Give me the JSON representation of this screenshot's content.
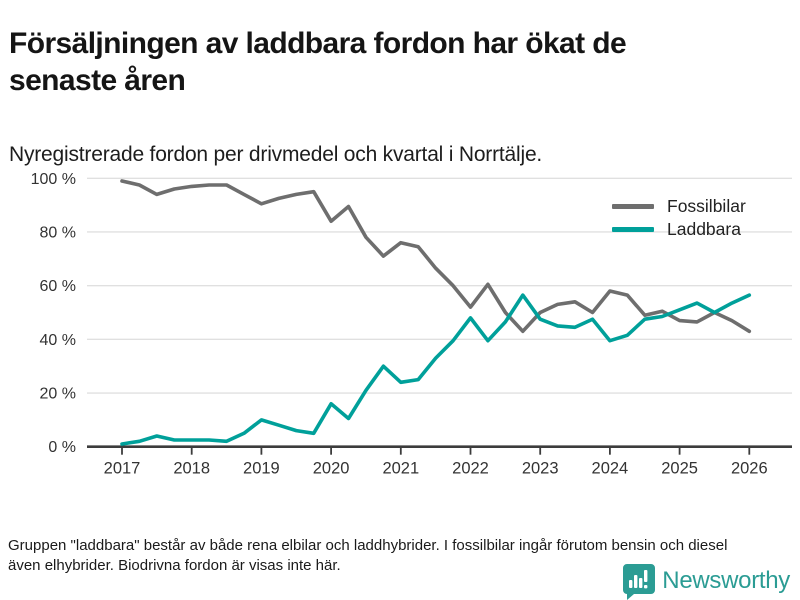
{
  "header": {
    "title": "Försäljningen av laddbara fordon har ökat de senaste åren",
    "subtitle": "Nyregistrerade fordon per drivmedel och kvartal i Norrtälje."
  },
  "chart_data": {
    "type": "line",
    "x_unit": "quarter",
    "x_start": "2017 Q1",
    "x_end": "2026 Q1",
    "x_tick_labels": [
      "2017",
      "2018",
      "2019",
      "2020",
      "2021",
      "2022",
      "2023",
      "2024",
      "2025",
      "2026"
    ],
    "y_tick_values": [
      0,
      20,
      40,
      60,
      80,
      100
    ],
    "y_tick_labels": [
      "0 %",
      "20 %",
      "40 %",
      "60 %",
      "80 %",
      "100 %"
    ],
    "ylim": [
      0,
      100
    ],
    "grid": "horizontal",
    "legend_position": "top-right",
    "series": [
      {
        "name": "Fossilbilar",
        "color": "#6e6e6e",
        "values": [
          99,
          97.5,
          94,
          96,
          97,
          97.5,
          97.5,
          94,
          90.5,
          92.5,
          94,
          95,
          84,
          89.5,
          78,
          71,
          76,
          74.5,
          66.5,
          60,
          52,
          60.5,
          50,
          43,
          50,
          53,
          54,
          50,
          58,
          56.5,
          49,
          50.5,
          47,
          46.5,
          50,
          47,
          43
        ]
      },
      {
        "name": "Laddbara",
        "color": "#00a09a",
        "values": [
          1,
          2,
          4,
          2.5,
          2.5,
          2.5,
          2,
          5,
          10,
          8,
          6,
          5,
          16,
          10.5,
          21,
          30,
          24,
          25,
          33,
          39.5,
          48,
          39.5,
          46.5,
          56.5,
          47.5,
          45,
          44.5,
          47.5,
          39.5,
          41.5,
          47.5,
          48.5,
          51,
          53.5,
          50,
          53.5,
          56.5
        ]
      }
    ]
  },
  "footer": {
    "note": "Gruppen \"laddbara\" består av både rena elbilar och laddhybrider. I fossilbilar ingår förutom bensin och diesel även elhybrider. Biodrivna fordon är visas inte här."
  },
  "logo": {
    "name": "Newsworthy",
    "icon": "chart-speech-bubble-icon",
    "color": "#2b9c94"
  },
  "style": {
    "gridline_color": "#e0e0e0",
    "axis_color": "#3c3c3c",
    "tick_label_color": "#333333"
  }
}
